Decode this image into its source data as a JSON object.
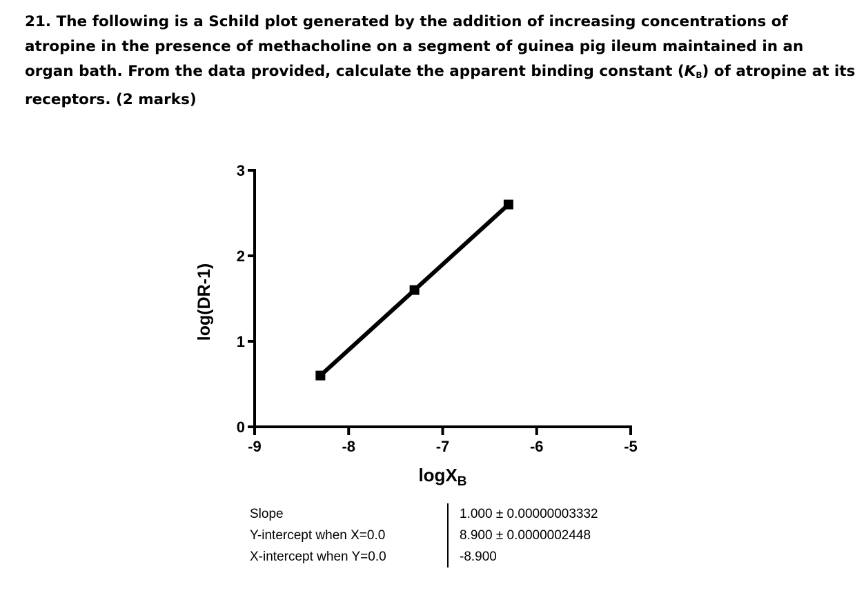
{
  "question": {
    "text_before": "21. The following is a Schild plot generated by the addition of increasing concentrations of atropine in the presence of methacholine on a segment  of guinea pig ileum maintained in an organ bath. From the data provided, calculate the apparent binding constant (",
    "kb_symbol": "K",
    "kb_subscript": "B",
    "text_after": ") of atropine at its receptors. (2 marks)"
  },
  "chart_data": {
    "type": "line",
    "x": [
      -8.3,
      -7.3,
      -6.3
    ],
    "y": [
      0.6,
      1.6,
      2.6
    ],
    "xlim": [
      -9,
      -5
    ],
    "ylim": [
      0,
      3
    ],
    "xticks": [
      -9,
      -8,
      -7,
      -6,
      -5
    ],
    "yticks": [
      0,
      1,
      2,
      3
    ],
    "xtick_labels": [
      "-9",
      "-8",
      "-7",
      "-6",
      "-5"
    ],
    "ytick_labels": [
      "0",
      "1",
      "2",
      "3"
    ],
    "xlabel_main": "logX",
    "xlabel_sub": "B",
    "ylabel": "log(DR-1)",
    "marker": "square",
    "line_color": "#000000",
    "grid": false
  },
  "stats": [
    {
      "label": "Slope",
      "value": "1.000 ± 0.00000003332"
    },
    {
      "label": "Y-intercept when X=0.0",
      "value": "8.900 ± 0.0000002448"
    },
    {
      "label": "X-intercept when Y=0.0",
      "value": "-8.900"
    }
  ]
}
